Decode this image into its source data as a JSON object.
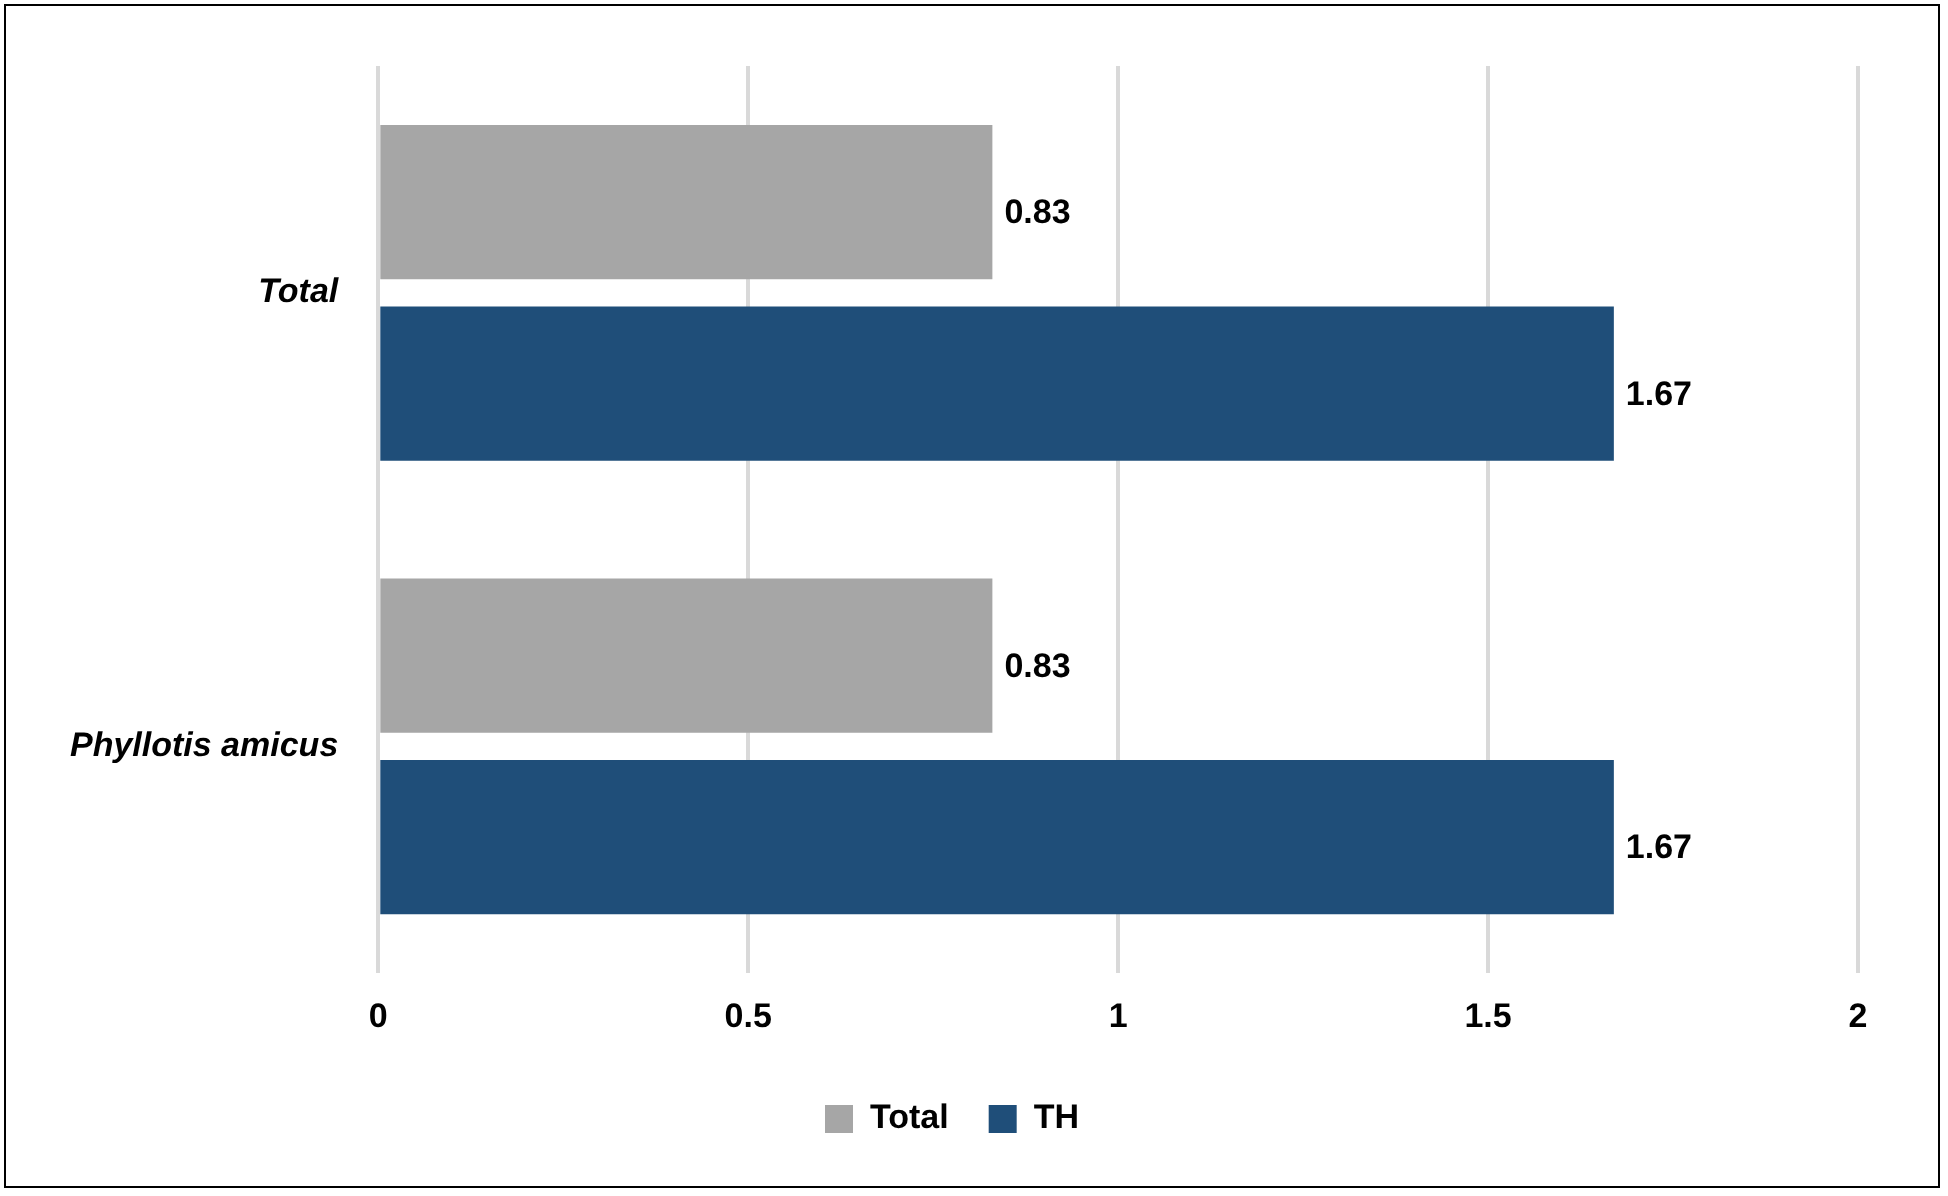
{
  "chart_data": {
    "type": "bar",
    "orientation": "horizontal",
    "categories": [
      "Total",
      "Phyllotis amicus"
    ],
    "series": [
      {
        "name": "Total",
        "color": "#a6a6a6",
        "values": [
          0.83,
          0.83
        ]
      },
      {
        "name": "TH",
        "color": "#1f4e79",
        "values": [
          1.67,
          1.67
        ]
      }
    ],
    "xlim": [
      0,
      2
    ],
    "xticks": [
      0,
      0.5,
      1,
      1.5,
      2
    ],
    "grid": "x",
    "legend": "bottom",
    "data_labels": true
  }
}
